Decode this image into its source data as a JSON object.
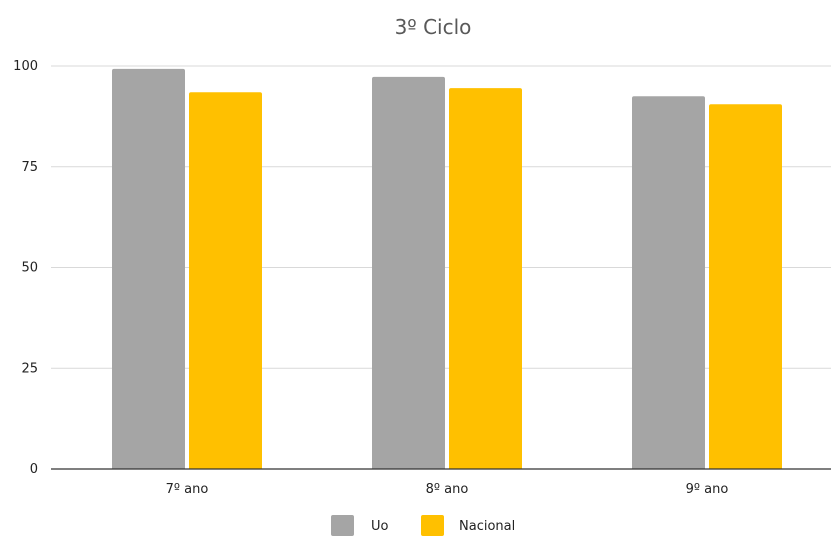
{
  "chart_data": {
    "type": "bar",
    "title": "3º Ciclo",
    "xlabel": "",
    "ylabel": "",
    "categories": [
      "7º ano",
      "8º ano",
      "9º ano"
    ],
    "series": [
      {
        "name": "Uo",
        "values": [
          99.3,
          97.3,
          92.5
        ],
        "color": "#a5a5a5"
      },
      {
        "name": "Nacional",
        "values": [
          93.5,
          94.5,
          90.5
        ],
        "color": "#ffc000"
      }
    ],
    "ylim": [
      0,
      100
    ],
    "yticks": [
      "0",
      "25",
      "50",
      "75",
      "100"
    ],
    "grid": true,
    "legend_position": "bottom"
  }
}
